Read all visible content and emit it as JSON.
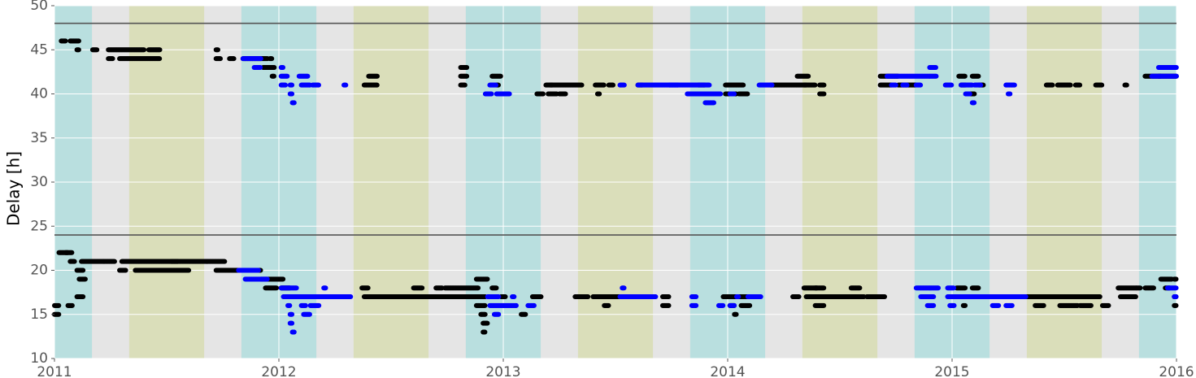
{
  "chart_data": {
    "type": "scatter",
    "title": "",
    "xlabel": "",
    "ylabel": "Delay [h]",
    "xlim": [
      2011.0,
      2016.0
    ],
    "ylim": [
      10,
      50
    ],
    "x_ticks": [
      2011,
      2012,
      2013,
      2014,
      2015,
      2016
    ],
    "x_tick_labels": [
      "2011",
      "2012",
      "2013",
      "2014",
      "2015",
      "2016"
    ],
    "y_ticks": [
      10,
      15,
      20,
      25,
      30,
      35,
      40,
      45,
      50
    ],
    "y_tick_labels": [
      "10",
      "15",
      "20",
      "25",
      "30",
      "35",
      "40",
      "45",
      "50"
    ],
    "grid": true,
    "background_color": "#e5e5e5",
    "reference_lines": [
      24,
      48
    ],
    "reference_line_color": "#555555",
    "shaded_bands": [
      {
        "x0": 2011.0,
        "x1": 2011.167,
        "color": "#b9dfdf"
      },
      {
        "x0": 2011.333,
        "x1": 2011.667,
        "color": "#dadeba"
      },
      {
        "x0": 2011.833,
        "x1": 2012.167,
        "color": "#b9dfdf"
      },
      {
        "x0": 2012.333,
        "x1": 2012.667,
        "color": "#dadeba"
      },
      {
        "x0": 2012.833,
        "x1": 2013.167,
        "color": "#b9dfdf"
      },
      {
        "x0": 2013.333,
        "x1": 2013.667,
        "color": "#dadeba"
      },
      {
        "x0": 2013.833,
        "x1": 2014.167,
        "color": "#b9dfdf"
      },
      {
        "x0": 2014.333,
        "x1": 2014.667,
        "color": "#dadeba"
      },
      {
        "x0": 2014.833,
        "x1": 2015.167,
        "color": "#b9dfdf"
      },
      {
        "x0": 2015.333,
        "x1": 2015.667,
        "color": "#dadeba"
      },
      {
        "x0": 2015.833,
        "x1": 2016.0,
        "color": "#b9dfdf"
      }
    ],
    "series": [
      {
        "color": "#000000",
        "segments": [
          [
            2011.0,
            2011.02,
            15
          ],
          [
            2011.0,
            2011.02,
            16
          ],
          [
            2011.02,
            2011.06,
            22
          ],
          [
            2011.05,
            2011.08,
            22
          ],
          [
            2011.06,
            2011.08,
            16
          ],
          [
            2011.07,
            2011.09,
            21
          ],
          [
            2011.1,
            2011.13,
            20
          ],
          [
            2011.11,
            2011.14,
            19
          ],
          [
            2011.1,
            2011.13,
            17
          ],
          [
            2011.12,
            2011.27,
            21
          ],
          [
            2011.29,
            2011.32,
            20
          ],
          [
            2011.3,
            2011.55,
            21
          ],
          [
            2011.36,
            2011.6,
            20
          ],
          [
            2011.52,
            2011.76,
            21
          ],
          [
            2011.72,
            2011.82,
            20
          ],
          [
            2011.78,
            2011.88,
            20
          ],
          [
            2011.85,
            2011.92,
            20
          ],
          [
            2011.92,
            2012.02,
            19
          ],
          [
            2011.94,
            2011.99,
            18
          ],
          [
            2012.01,
            2012.05,
            18
          ],
          [
            2011.03,
            2011.05,
            46
          ],
          [
            2011.07,
            2011.11,
            46
          ],
          [
            2011.1,
            2011.11,
            45
          ],
          [
            2011.17,
            2011.19,
            45
          ],
          [
            2011.24,
            2011.4,
            45
          ],
          [
            2011.24,
            2011.26,
            44
          ],
          [
            2011.29,
            2011.47,
            44
          ],
          [
            2011.42,
            2011.47,
            45
          ],
          [
            2011.72,
            2011.73,
            45
          ],
          [
            2011.72,
            2011.74,
            44
          ],
          [
            2011.78,
            2011.8,
            44
          ],
          [
            2011.84,
            2011.95,
            44
          ],
          [
            2011.93,
            2011.98,
            43
          ],
          [
            2011.97,
            2011.98,
            42
          ],
          [
            2011.96,
            2011.97,
            44
          ],
          [
            2012.29,
            2012.31,
            17
          ],
          [
            2012.37,
            2012.4,
            18
          ],
          [
            2012.38,
            2012.44,
            17
          ],
          [
            2012.41,
            2012.52,
            17
          ],
          [
            2012.52,
            2012.68,
            17
          ],
          [
            2012.6,
            2012.64,
            18
          ],
          [
            2012.68,
            2012.78,
            17
          ],
          [
            2012.7,
            2012.73,
            18
          ],
          [
            2012.74,
            2012.89,
            18
          ],
          [
            2012.78,
            2012.92,
            17
          ],
          [
            2012.88,
            2012.93,
            19
          ],
          [
            2012.88,
            2012.92,
            16
          ],
          [
            2012.9,
            2012.92,
            15
          ],
          [
            2012.91,
            2012.93,
            14
          ],
          [
            2012.91,
            2012.92,
            13
          ],
          [
            2012.95,
            2012.97,
            18
          ],
          [
            2012.99,
            2013.01,
            17
          ],
          [
            2013.13,
            2013.17,
            17
          ],
          [
            2013.08,
            2013.1,
            15
          ],
          [
            2012.4,
            2012.44,
            42
          ],
          [
            2012.38,
            2012.44,
            41
          ],
          [
            2012.81,
            2012.84,
            43
          ],
          [
            2012.81,
            2012.84,
            42
          ],
          [
            2012.81,
            2012.83,
            41
          ],
          [
            2012.95,
            2012.99,
            42
          ],
          [
            2012.97,
            2012.98,
            41
          ],
          [
            2013.15,
            2013.18,
            40
          ],
          [
            2013.19,
            2013.22,
            41
          ],
          [
            2013.21,
            2013.35,
            41
          ],
          [
            2013.2,
            2013.24,
            40
          ],
          [
            2013.25,
            2013.28,
            40
          ],
          [
            2013.41,
            2013.45,
            41
          ],
          [
            2013.42,
            2013.43,
            40
          ],
          [
            2013.47,
            2013.49,
            41
          ],
          [
            2013.6,
            2013.62,
            41
          ],
          [
            2013.87,
            2013.9,
            41
          ],
          [
            2013.99,
            2014.07,
            41
          ],
          [
            2013.99,
            2014.02,
            40
          ],
          [
            2014.03,
            2014.04,
            40
          ],
          [
            2014.05,
            2014.09,
            40
          ],
          [
            2014.19,
            2014.35,
            41
          ],
          [
            2014.31,
            2014.36,
            42
          ],
          [
            2014.34,
            2014.39,
            41
          ],
          [
            2014.41,
            2014.43,
            41
          ],
          [
            2014.41,
            2014.43,
            40
          ],
          [
            2014.68,
            2014.76,
            42
          ],
          [
            2014.68,
            2014.73,
            41
          ],
          [
            2014.76,
            2014.8,
            41
          ],
          [
            2014.8,
            2014.84,
            41
          ],
          [
            2015.03,
            2015.06,
            42
          ],
          [
            2015.04,
            2015.06,
            41
          ],
          [
            2015.09,
            2015.12,
            42
          ],
          [
            2015.12,
            2015.14,
            41
          ],
          [
            2015.08,
            2015.1,
            40
          ],
          [
            2015.42,
            2015.45,
            41
          ],
          [
            2015.47,
            2015.53,
            41
          ],
          [
            2015.55,
            2015.57,
            41
          ],
          [
            2015.64,
            2015.67,
            41
          ],
          [
            2015.77,
            2015.78,
            41
          ],
          [
            2015.86,
            2015.93,
            42
          ],
          [
            2015.92,
            2016.0,
            42
          ],
          [
            2015.93,
            2015.95,
            43
          ],
          [
            2015.96,
            2015.97,
            43
          ],
          [
            2013.32,
            2013.38,
            17
          ],
          [
            2013.4,
            2013.53,
            17
          ],
          [
            2013.45,
            2013.47,
            16
          ],
          [
            2013.55,
            2013.58,
            17
          ],
          [
            2013.71,
            2013.74,
            17
          ],
          [
            2013.71,
            2013.74,
            16
          ],
          [
            2013.98,
            2014.06,
            17
          ],
          [
            2014.01,
            2014.03,
            16
          ],
          [
            2014.03,
            2014.04,
            15
          ],
          [
            2014.06,
            2014.1,
            16
          ],
          [
            2014.06,
            2014.09,
            17
          ],
          [
            2014.29,
            2014.32,
            17
          ],
          [
            2014.34,
            2014.4,
            18
          ],
          [
            2014.35,
            2014.61,
            17
          ],
          [
            2014.39,
            2014.43,
            16
          ],
          [
            2014.39,
            2014.43,
            18
          ],
          [
            2014.55,
            2014.59,
            18
          ],
          [
            2014.62,
            2014.7,
            17
          ],
          [
            2015.02,
            2015.06,
            18
          ],
          [
            2015.02,
            2015.05,
            17
          ],
          [
            2015.05,
            2015.06,
            16
          ],
          [
            2015.09,
            2015.12,
            18
          ],
          [
            2015.33,
            2015.66,
            17
          ],
          [
            2015.37,
            2015.41,
            16
          ],
          [
            2015.48,
            2015.56,
            16
          ],
          [
            2015.57,
            2015.62,
            16
          ],
          [
            2015.67,
            2015.7,
            16
          ],
          [
            2015.74,
            2015.84,
            18
          ],
          [
            2015.75,
            2015.82,
            17
          ],
          [
            2015.86,
            2015.9,
            18
          ],
          [
            2015.93,
            2015.98,
            19
          ],
          [
            2015.95,
            2015.97,
            18
          ],
          [
            2015.99,
            2016.0,
            19
          ],
          [
            2015.99,
            2016.0,
            17
          ],
          [
            2015.99,
            2016.0,
            16
          ]
        ]
      },
      {
        "color": "#0000ff",
        "segments": [
          [
            2011.82,
            2011.89,
            20
          ],
          [
            2011.85,
            2011.91,
            19
          ],
          [
            2011.89,
            2011.91,
            20
          ],
          [
            2011.91,
            2011.95,
            19
          ],
          [
            2012.01,
            2012.08,
            18
          ],
          [
            2012.02,
            2012.12,
            17
          ],
          [
            2012.04,
            2012.05,
            16
          ],
          [
            2012.05,
            2012.06,
            15
          ],
          [
            2012.05,
            2012.06,
            14
          ],
          [
            2012.06,
            2012.07,
            13
          ],
          [
            2012.08,
            2012.11,
            17
          ],
          [
            2012.1,
            2012.12,
            16
          ],
          [
            2012.11,
            2012.14,
            15
          ],
          [
            2012.12,
            2012.18,
            17
          ],
          [
            2012.14,
            2012.18,
            16
          ],
          [
            2012.18,
            2012.32,
            17
          ],
          [
            2012.2,
            2012.21,
            18
          ],
          [
            2011.84,
            2011.92,
            44
          ],
          [
            2011.89,
            2011.92,
            43
          ],
          [
            2012.01,
            2012.02,
            43
          ],
          [
            2012.01,
            2012.04,
            42
          ],
          [
            2012.01,
            2012.03,
            41
          ],
          [
            2012.05,
            2012.06,
            41
          ],
          [
            2012.05,
            2012.06,
            40
          ],
          [
            2012.06,
            2012.07,
            39
          ],
          [
            2012.09,
            2012.13,
            42
          ],
          [
            2012.1,
            2012.14,
            41
          ],
          [
            2012.15,
            2012.18,
            41
          ],
          [
            2012.29,
            2012.3,
            41
          ],
          [
            2012.92,
            2012.95,
            40
          ],
          [
            2012.94,
            2012.97,
            41
          ],
          [
            2012.97,
            2013.03,
            40
          ],
          [
            2013.52,
            2013.54,
            41
          ],
          [
            2013.6,
            2013.78,
            41
          ],
          [
            2013.74,
            2013.92,
            41
          ],
          [
            2013.82,
            2013.97,
            40
          ],
          [
            2013.9,
            2013.94,
            39
          ],
          [
            2014.01,
            2014.03,
            40
          ],
          [
            2014.14,
            2014.2,
            41
          ],
          [
            2012.93,
            2012.98,
            17
          ],
          [
            2012.94,
            2013.06,
            16
          ],
          [
            2012.96,
            2012.98,
            15
          ],
          [
            2013.04,
            2013.05,
            17
          ],
          [
            2013.11,
            2013.14,
            16
          ],
          [
            2013.52,
            2013.68,
            17
          ],
          [
            2013.53,
            2013.54,
            18
          ],
          [
            2013.84,
            2013.86,
            17
          ],
          [
            2013.84,
            2013.86,
            16
          ],
          [
            2013.96,
            2013.98,
            16
          ],
          [
            2014.01,
            2014.03,
            16
          ],
          [
            2014.04,
            2014.05,
            17
          ],
          [
            2014.09,
            2014.15,
            17
          ],
          [
            2014.71,
            2014.93,
            42
          ],
          [
            2014.73,
            2014.75,
            41
          ],
          [
            2014.78,
            2014.8,
            41
          ],
          [
            2014.84,
            2014.86,
            41
          ],
          [
            2014.9,
            2014.93,
            43
          ],
          [
            2014.97,
            2015.0,
            41
          ],
          [
            2015.04,
            2015.09,
            41
          ],
          [
            2015.06,
            2015.08,
            40
          ],
          [
            2015.09,
            2015.1,
            39
          ],
          [
            2015.1,
            2015.13,
            41
          ],
          [
            2015.24,
            2015.28,
            41
          ],
          [
            2015.25,
            2015.26,
            40
          ],
          [
            2015.89,
            2016.0,
            42
          ],
          [
            2015.92,
            2016.0,
            43
          ],
          [
            2014.84,
            2014.94,
            18
          ],
          [
            2014.86,
            2014.92,
            17
          ],
          [
            2014.89,
            2014.92,
            16
          ],
          [
            2014.98,
            2015.01,
            18
          ],
          [
            2014.98,
            2015.04,
            17
          ],
          [
            2014.99,
            2015.01,
            16
          ],
          [
            2015.03,
            2015.33,
            17
          ],
          [
            2015.18,
            2015.21,
            16
          ],
          [
            2015.24,
            2015.27,
            16
          ],
          [
            2015.96,
            2016.0,
            18
          ],
          [
            2015.99,
            2016.0,
            17
          ]
        ]
      }
    ]
  }
}
